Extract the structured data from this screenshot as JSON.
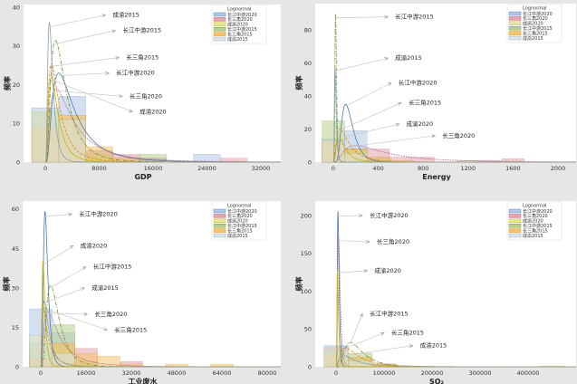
{
  "legend_title": "Lognormal",
  "series_names": [
    "长江中游2020",
    "长三角2020",
    "成渝2020",
    "长江中游2015",
    "长三角2015",
    "成渝2015"
  ],
  "series_colors": {
    "fill": [
      "#aec7e8",
      "#e6a3a8",
      "#e6e69a",
      "#b8d08f",
      "#f5c26b",
      "#dde5ea"
    ],
    "line": [
      "#4e79a7",
      "#b2598a",
      "#c8b400",
      "#6b8e23",
      "#e08a00",
      "#8aa0aa"
    ]
  },
  "chart_data": [
    {
      "type": "histogram",
      "title": "",
      "xlabel": "GDP",
      "ylabel": "频率",
      "xlim": [
        -3230,
        34960
      ],
      "ylim": [
        0,
        40.7
      ],
      "xticks": [
        0,
        8000,
        16000,
        24000,
        32000
      ],
      "xtick_labels": [
        "0",
        "8000",
        "16000",
        "24000",
        "32000"
      ],
      "yticks": [
        0,
        10,
        20,
        30,
        40
      ],
      "ytick_labels": [
        "0",
        "10",
        "20",
        "30",
        "40"
      ],
      "legend": "top-right",
      "series": [
        {
          "name": "长江中游2020",
          "bins": [
            [
              -2000,
              2000,
              14
            ],
            [
              2000,
              6000,
              17
            ],
            [
              6000,
              10000,
              3
            ],
            [
              10000,
              14000,
              1
            ],
            [
              14000,
              18000,
              1
            ],
            [
              22000,
              26000,
              2
            ]
          ],
          "peak": [
            2000,
            23
          ],
          "sigma": 0.75
        },
        {
          "name": "长三角2020",
          "bins": [
            [
              -2000,
              2000,
              9
            ],
            [
              2000,
              6000,
              12
            ],
            [
              6000,
              10000,
              3
            ],
            [
              10000,
              14000,
              2
            ],
            [
              14000,
              18000,
              1
            ],
            [
              26000,
              30000,
              1
            ]
          ],
          "peak": [
            1600,
            19
          ],
          "sigma": 0.9
        },
        {
          "name": "成渝2020",
          "bins": [
            [
              -2000,
              2000,
              13
            ],
            [
              2000,
              6000,
              12
            ],
            [
              6000,
              10000,
              1
            ]
          ],
          "peak": [
            900,
            22
          ],
          "sigma": 0.7
        },
        {
          "name": "长江中游2015",
          "bins": [
            [
              -2000,
              2000,
              13
            ],
            [
              2000,
              6000,
              11
            ],
            [
              6000,
              10000,
              2
            ],
            [
              14000,
              18000,
              2
            ]
          ],
          "peak": [
            1500,
            31.5
          ],
          "sigma": 0.7
        },
        {
          "name": "长三角2015",
          "bins": [
            [
              -2000,
              2000,
              9
            ],
            [
              2000,
              6000,
              12
            ],
            [
              6000,
              10000,
              4
            ],
            [
              10000,
              14000,
              1
            ]
          ],
          "peak": [
            900,
            25.5
          ],
          "sigma": 0.8
        },
        {
          "name": "成渝2015",
          "bins": [
            [
              -2000,
              2000,
              14
            ],
            [
              2000,
              6000,
              11
            ]
          ],
          "peak": [
            600,
            36
          ],
          "sigma": 0.6
        }
      ],
      "annotations": [
        {
          "text": "成渝2015",
          "series": 5,
          "at": [
            10000,
            38
          ]
        },
        {
          "text": "长江中游2015",
          "series": 3,
          "at": [
            11500,
            34
          ]
        },
        {
          "text": "长三角2015",
          "series": 4,
          "at": [
            12000,
            27
          ]
        },
        {
          "text": "长江中游2020",
          "series": 0,
          "at": [
            10500,
            23
          ]
        },
        {
          "text": "长三角2020",
          "series": 1,
          "at": [
            12500,
            17
          ]
        },
        {
          "text": "成渝2020",
          "series": 2,
          "at": [
            14000,
            13
          ]
        }
      ]
    },
    {
      "type": "histogram",
      "title": "",
      "xlabel": "Energy",
      "ylabel": "频率",
      "xlim": [
        -161,
        2161
      ],
      "ylim": [
        0,
        96
      ],
      "xticks": [
        0,
        400,
        800,
        1200,
        1600,
        2000
      ],
      "xtick_labels": [
        "0",
        "400",
        "800",
        "1200",
        "1600",
        "2000"
      ],
      "yticks": [
        0,
        20,
        40,
        60,
        80
      ],
      "ytick_labels": [
        "0",
        "20",
        "40",
        "60",
        "80"
      ],
      "legend": "top-right",
      "series": [
        {
          "name": "长江中游2020",
          "bins": [
            [
              -100,
              100,
              14
            ],
            [
              100,
              300,
              19
            ],
            [
              300,
              500,
              3
            ]
          ],
          "peak": [
            110,
            35
          ],
          "sigma": 0.45
        },
        {
          "name": "长三角2020",
          "bins": [
            [
              -100,
              100,
              7
            ],
            [
              100,
              300,
              8
            ],
            [
              300,
              500,
              8
            ],
            [
              500,
              700,
              3
            ],
            [
              700,
              900,
              3
            ],
            [
              1300,
              1500,
              1
            ],
            [
              1500,
              1700,
              2
            ]
          ],
          "peak": [
            200,
            10
          ],
          "sigma": 0.8
        },
        {
          "name": "成渝2020",
          "bins": [
            [
              -100,
              100,
              12
            ],
            [
              100,
              300,
              7
            ]
          ],
          "peak": [
            50,
            15
          ],
          "sigma": 0.7
        },
        {
          "name": "长江中游2015",
          "bins": [
            [
              -100,
              100,
              25
            ],
            [
              100,
              300,
              8
            ],
            [
              300,
              500,
              2
            ],
            [
              1100,
              1300,
              1
            ]
          ],
          "peak": [
            20,
            90
          ],
          "sigma": 0.35
        },
        {
          "name": "长三角2015",
          "bins": [
            [
              -100,
              100,
              12
            ],
            [
              100,
              300,
              8
            ],
            [
              300,
              500,
              3
            ],
            [
              500,
              700,
              1
            ]
          ],
          "peak": [
            60,
            20
          ],
          "sigma": 0.8
        },
        {
          "name": "成渝2015",
          "bins": [
            [
              -100,
              100,
              13
            ],
            [
              100,
              300,
              5
            ]
          ],
          "peak": [
            15,
            57
          ],
          "sigma": 0.5
        }
      ],
      "annotations": [
        {
          "text": "长江中游2015",
          "series": 3,
          "at": [
            550,
            88
          ]
        },
        {
          "text": "成渝2015",
          "series": 5,
          "at": [
            550,
            63
          ]
        },
        {
          "text": "长江中游2020",
          "series": 0,
          "at": [
            580,
            48
          ]
        },
        {
          "text": "长三角2015",
          "series": 4,
          "at": [
            670,
            36
          ]
        },
        {
          "text": "成渝2020",
          "series": 2,
          "at": [
            650,
            23
          ]
        },
        {
          "text": "长三角2020",
          "series": 1,
          "at": [
            970,
            16
          ]
        }
      ]
    },
    {
      "type": "histogram",
      "title": "",
      "xlabel": "工业废水",
      "ylabel": "频率",
      "xlim": [
        -6400,
        84800
      ],
      "ylim": [
        0,
        63
      ],
      "xticks": [
        0,
        16000,
        32000,
        48000,
        64000,
        80000
      ],
      "xtick_labels": [
        "0",
        "16000",
        "32000",
        "48000",
        "64000",
        "80000"
      ],
      "yticks": [
        0,
        15,
        30,
        45,
        60
      ],
      "ytick_labels": [
        "0",
        "15",
        "30",
        "45",
        "60"
      ],
      "legend": "top-right",
      "series": [
        {
          "name": "长江中游2020",
          "bins": [
            [
              -4000,
              4000,
              22
            ],
            [
              4000,
              12000,
              13
            ]
          ],
          "peak": [
            1500,
            59
          ],
          "sigma": 0.5
        },
        {
          "name": "长三角2020",
          "bins": [
            [
              -4000,
              4000,
              7
            ],
            [
              4000,
              12000,
              9
            ],
            [
              12000,
              20000,
              7
            ],
            [
              28000,
              36000,
              2
            ]
          ],
          "peak": [
            2500,
            21
          ],
          "sigma": 0.9
        },
        {
          "name": "成渝2020",
          "bins": [
            [
              -4000,
              4000,
              12
            ],
            [
              4000,
              12000,
              8
            ]
          ],
          "peak": [
            800,
            40
          ],
          "sigma": 0.6
        },
        {
          "name": "长江中游2015",
          "bins": [
            [
              -4000,
              4000,
              9
            ],
            [
              4000,
              12000,
              16
            ],
            [
              12000,
              20000,
              2
            ]
          ],
          "peak": [
            3500,
            31
          ],
          "sigma": 0.6
        },
        {
          "name": "长三角2015",
          "bins": [
            [
              -4000,
              4000,
              3
            ],
            [
              4000,
              12000,
              9
            ],
            [
              12000,
              20000,
              5
            ],
            [
              20000,
              28000,
              4
            ],
            [
              28000,
              36000,
              1
            ],
            [
              44000,
              52000,
              1
            ],
            [
              60000,
              68000,
              1
            ]
          ],
          "peak": [
            800,
            23
          ],
          "sigma": 1.0
        },
        {
          "name": "成渝2015",
          "bins": [
            [
              -4000,
              4000,
              12
            ],
            [
              4000,
              12000,
              5
            ]
          ],
          "peak": [
            1200,
            25
          ],
          "sigma": 0.8
        }
      ],
      "annotations": [
        {
          "text": "长江中游2020",
          "series": 0,
          "at": [
            13500,
            58
          ]
        },
        {
          "text": "成渝2020",
          "series": 2,
          "at": [
            14000,
            46
          ]
        },
        {
          "text": "长江中游2015",
          "series": 3,
          "at": [
            18500,
            38
          ]
        },
        {
          "text": "成渝2015",
          "series": 5,
          "at": [
            18000,
            30
          ]
        },
        {
          "text": "长三角2020",
          "series": 1,
          "at": [
            19000,
            20
          ]
        },
        {
          "text": "长三角2015",
          "series": 4,
          "at": [
            26000,
            14
          ]
        }
      ]
    },
    {
      "type": "histogram",
      "title": "",
      "xlabel": "SO₂",
      "ylabel": "频率",
      "xlim": [
        -43400,
        500000
      ],
      "ylim": [
        0,
        219
      ],
      "xticks": [
        0,
        100000,
        200000,
        300000,
        400000
      ],
      "xtick_labels": [
        "0",
        "100000",
        "200000",
        "300000",
        "400000"
      ],
      "yticks": [
        0,
        50,
        100,
        150,
        200
      ],
      "ytick_labels": [
        "0",
        "50",
        "100",
        "150",
        "200"
      ],
      "legend": "top-right",
      "series": [
        {
          "name": "长江中游2020",
          "bins": [
            [
              -25000,
              25000,
              28
            ],
            [
              25000,
              75000,
              12
            ],
            [
              75000,
              125000,
              3
            ]
          ],
          "peak": [
            4000,
            205
          ],
          "sigma": 0.45
        },
        {
          "name": "长三角2020",
          "bins": [
            [
              -25000,
              25000,
              25
            ],
            [
              25000,
              75000,
              8
            ],
            [
              75000,
              125000,
              2
            ],
            [
              125000,
              175000,
              1
            ]
          ],
          "peak": [
            5000,
            172
          ],
          "sigma": 0.5
        },
        {
          "name": "成渝2020",
          "bins": [
            [
              -25000,
              25000,
              20
            ],
            [
              25000,
              75000,
              10
            ]
          ],
          "peak": [
            3000,
            128
          ],
          "sigma": 0.5
        },
        {
          "name": "长江中游2015",
          "bins": [
            [
              -25000,
              25000,
              22
            ],
            [
              25000,
              75000,
              18
            ],
            [
              75000,
              125000,
              3
            ]
          ],
          "peak": [
            30000,
            32
          ],
          "sigma": 0.6
        },
        {
          "name": "长三角2015",
          "bins": [
            [
              -25000,
              25000,
              15
            ],
            [
              25000,
              75000,
              13
            ],
            [
              75000,
              125000,
              4
            ],
            [
              125000,
              175000,
              1
            ],
            [
              425000,
              475000,
              1
            ]
          ],
          "peak": [
            20000,
            25
          ],
          "sigma": 0.8
        },
        {
          "name": "成渝2015",
          "bins": [
            [
              -25000,
              25000,
              26
            ],
            [
              25000,
              75000,
              8
            ]
          ],
          "peak": [
            15000,
            15
          ],
          "sigma": 0.9
        }
      ],
      "annotations": [
        {
          "text": "长江中游2020",
          "series": 0,
          "at": [
            70000,
            200
          ]
        },
        {
          "text": "长三角2020",
          "series": 1,
          "at": [
            85000,
            165
          ]
        },
        {
          "text": "成渝2020",
          "series": 2,
          "at": [
            80000,
            127
          ]
        },
        {
          "text": "长江中游2015",
          "series": 3,
          "at": [
            70000,
            70
          ]
        },
        {
          "text": "长三角2015",
          "series": 4,
          "at": [
            115000,
            45
          ]
        },
        {
          "text": "成渝2015",
          "series": 5,
          "at": [
            175000,
            28
          ]
        }
      ]
    }
  ]
}
